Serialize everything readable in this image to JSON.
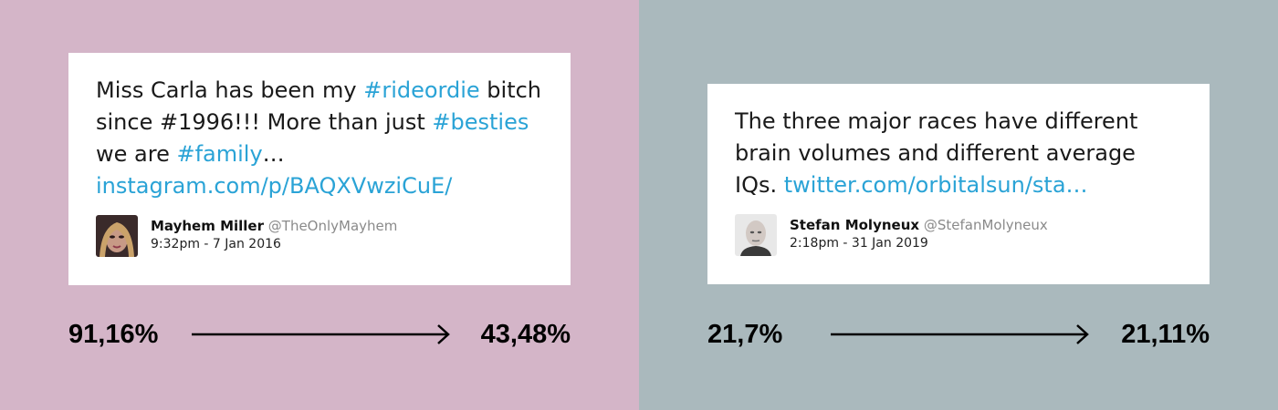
{
  "panels": [
    {
      "background": "#d4b5c8",
      "tweet": {
        "text_parts": [
          {
            "text": "Miss Carla has been my ",
            "kind": "plain"
          },
          {
            "text": "#rideordie",
            "kind": "tag"
          },
          {
            "text": " bitch since #1996!!! More than just ",
            "kind": "plain"
          },
          {
            "text": "#besties",
            "kind": "tag"
          },
          {
            "text": " we are ",
            "kind": "plain"
          },
          {
            "text": "#family",
            "kind": "tag"
          },
          {
            "text": "… ",
            "kind": "plain"
          },
          {
            "text": "instagram.com/p/BAQXVwziCuE/",
            "kind": "link"
          }
        ],
        "author_name": "Mayhem Miller",
        "author_handle": "@TheOnlyMayhem",
        "timestamp": "9:32pm - 7 Jan 2016"
      },
      "stat_before": "91,16%",
      "stat_after": "43,48%"
    },
    {
      "background": "#aab9bd",
      "tweet": {
        "text_parts": [
          {
            "text": "The three major races have different brain volumes and different average IQs. ",
            "kind": "plain"
          },
          {
            "text": "twitter.com/orbitalsun/sta…",
            "kind": "link"
          }
        ],
        "author_name": "Stefan Molyneux",
        "author_handle": "@StefanMolyneux",
        "timestamp": "2:18pm - 31 Jan 2019"
      },
      "stat_before": "21,7%",
      "stat_after": "21,11%"
    }
  ],
  "colors": {
    "accent": "#2aa3d6",
    "card": "#ffffff",
    "text": "#1a1a1a",
    "handle": "#8a8a8a"
  }
}
